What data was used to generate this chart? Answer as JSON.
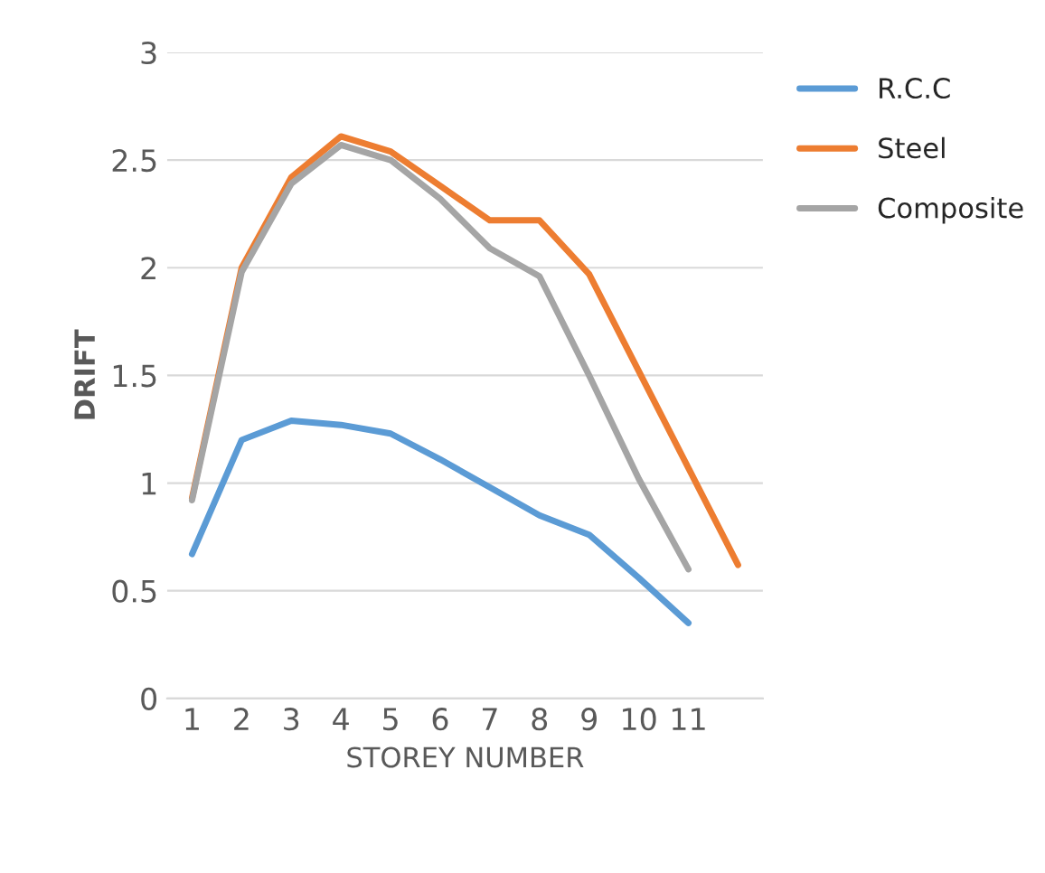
{
  "chart_data": {
    "type": "line",
    "xlabel": "STOREY NUMBER",
    "ylabel": "DRIFT",
    "categories": [
      "1",
      "2",
      "3",
      "4",
      "5",
      "6",
      "7",
      "8",
      "9",
      "10",
      "11",
      null
    ],
    "series": [
      {
        "name": "R.C.C",
        "color": "#5b9bd5",
        "values": [
          0.67,
          1.2,
          1.29,
          1.27,
          1.23,
          1.11,
          0.98,
          0.85,
          0.76,
          0.56,
          0.35,
          null
        ]
      },
      {
        "name": "Steel",
        "color": "#ed7d31",
        "values": [
          0.93,
          2.0,
          2.42,
          2.61,
          2.54,
          2.38,
          2.22,
          2.22,
          1.97,
          1.52,
          1.07,
          0.62
        ]
      },
      {
        "name": "Composite",
        "color": "#a5a5a5",
        "values": [
          0.92,
          1.98,
          2.39,
          2.57,
          2.5,
          2.32,
          2.09,
          1.96,
          1.5,
          1.02,
          0.6,
          null
        ]
      }
    ],
    "ylim": [
      0,
      3
    ],
    "yticks": [
      0,
      0.5,
      1,
      1.5,
      2,
      2.5,
      3
    ],
    "grid": "y",
    "legend": "right",
    "marker": "none",
    "line_style": "solid"
  }
}
